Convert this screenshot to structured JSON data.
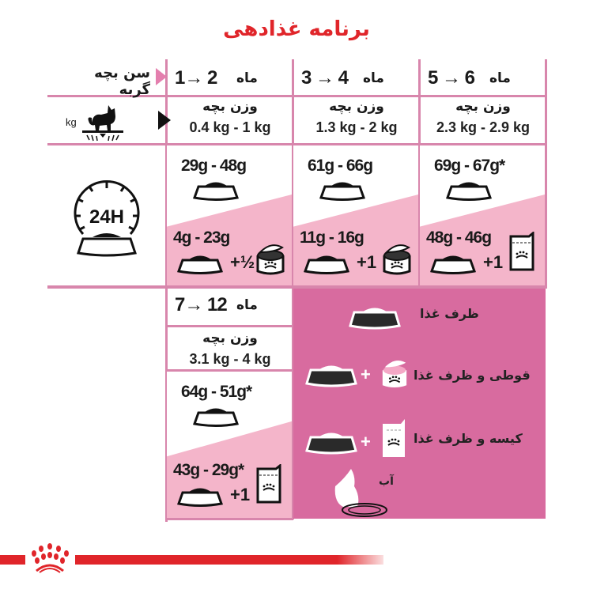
{
  "title": "برنامه غذادهی",
  "age_label": "سن بچه گربه",
  "kg_label": "kg",
  "month_word": "ماه",
  "weight_label": "وزن بچه",
  "clock_label": "24H",
  "columns": [
    {
      "months": "1→ 2",
      "weight": "0.4 kg - 1 kg",
      "dry": "29g - 48g",
      "wet_dry": "4g - 23g",
      "wet_qty": "+½",
      "wet_type": "can"
    },
    {
      "months": "3 → 4",
      "weight": "1.3 kg - 2 kg",
      "dry": "61g - 66g",
      "wet_dry": "11g - 16g",
      "wet_qty": "+1",
      "wet_type": "can"
    },
    {
      "months": "5 → 6",
      "weight": "2.3 kg - 2.9 kg",
      "dry": "69g - 67g*",
      "wet_dry": "48g - 46g",
      "wet_qty": "+1",
      "wet_type": "pouch"
    },
    {
      "months": "7→ 12",
      "weight": "3.1 kg - 4 kg",
      "dry": "64g - 51g*",
      "wet_dry": "43g - 29g*",
      "wet_qty": "+1",
      "wet_type": "pouch"
    }
  ],
  "legend": [
    {
      "label": "ظرف غذا",
      "icon": "bowl"
    },
    {
      "label": "قوطی و ظرف غذا",
      "icon": "bowl-plus-can",
      "plus": "+"
    },
    {
      "label": "کیسه و ظرف غذا",
      "icon": "bowl-plus-pouch",
      "plus": "+"
    },
    {
      "label": "آب",
      "icon": "water"
    }
  ],
  "colors": {
    "title": "#e0252a",
    "grid": "#d886ac",
    "light_pink": "#f4b5ca",
    "panel_pink": "#d86b9f",
    "brand_red": "#e0252a"
  }
}
